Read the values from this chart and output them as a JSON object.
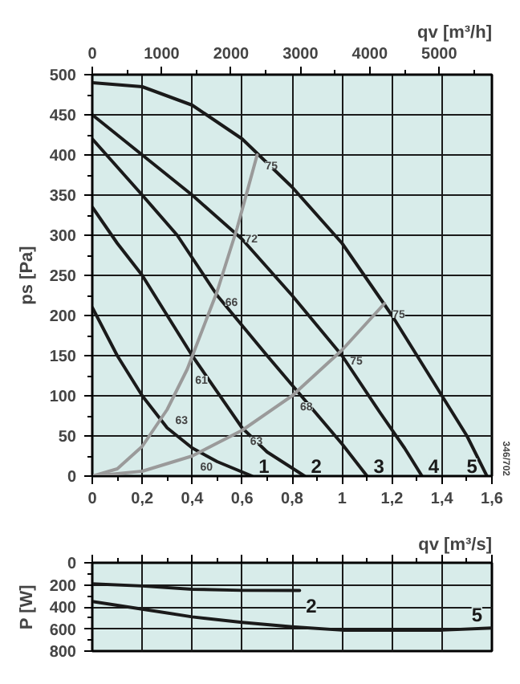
{
  "chart_data": [
    {
      "type": "line",
      "x2label": "qv [m³/h]",
      "ylabel": "ps [Pa]",
      "xlim": [
        0,
        1.6
      ],
      "ylim": [
        0,
        500
      ],
      "xticks": [
        0,
        {
          "value": 0.2,
          "label": "0,2"
        },
        {
          "value": 0.4,
          "label": "0,4"
        },
        {
          "value": 0.6,
          "label": "0,6"
        },
        {
          "value": 0.8,
          "label": "0,8"
        },
        1,
        {
          "value": 1.2,
          "label": "1,2"
        },
        {
          "value": 1.4,
          "label": "1,4"
        },
        {
          "value": 1.6,
          "label": "1,6"
        }
      ],
      "yticks": [
        0,
        50,
        100,
        150,
        200,
        250,
        300,
        350,
        400,
        450,
        500
      ],
      "x2lim": [
        0,
        5760
      ],
      "x2ticks": [
        0,
        1000,
        2000,
        3000,
        4000,
        5000
      ],
      "grid": true,
      "series": [
        {
          "name": "1",
          "color": "#1a1a1a",
          "x": [
            0,
            0.1,
            0.2,
            0.3,
            0.4,
            0.5,
            0.64
          ],
          "values": [
            210,
            150,
            100,
            60,
            35,
            18,
            0
          ]
        },
        {
          "name": "2",
          "color": "#1a1a1a",
          "x": [
            0,
            0.1,
            0.2,
            0.4,
            0.6,
            0.7,
            0.85
          ],
          "values": [
            335,
            290,
            250,
            150,
            60,
            30,
            0
          ]
        },
        {
          "name": "3",
          "color": "#1a1a1a",
          "x": [
            0,
            0.2,
            0.34,
            0.5,
            0.7,
            0.85,
            1.0,
            1.1
          ],
          "values": [
            420,
            350,
            300,
            225,
            150,
            95,
            40,
            0
          ]
        },
        {
          "name": "4",
          "color": "#1a1a1a",
          "x": [
            0,
            0.2,
            0.4,
            0.6,
            0.8,
            1.0,
            1.15,
            1.25,
            1.32
          ],
          "values": [
            450,
            400,
            350,
            295,
            225,
            150,
            80,
            35,
            0
          ]
        },
        {
          "name": "5",
          "color": "#1a1a1a",
          "x": [
            0,
            0.2,
            0.4,
            0.6,
            0.8,
            1.0,
            1.2,
            1.4,
            1.5,
            1.58
          ],
          "values": [
            490,
            485,
            462,
            420,
            360,
            290,
            200,
            100,
            50,
            0
          ]
        },
        {
          "color": "#9a9a9a",
          "x": [
            0,
            0.1,
            0.2,
            0.3,
            0.38,
            0.5,
            0.58,
            0.66
          ],
          "values": [
            0,
            9,
            37,
            83,
            133,
            230,
            309,
            400
          ]
        },
        {
          "color": "#9a9a9a",
          "x": [
            0,
            0.2,
            0.4,
            0.6,
            0.8,
            1.0,
            1.17
          ],
          "values": [
            0,
            6,
            25,
            57,
            100,
            157,
            215
          ]
        }
      ],
      "annotations": [
        {
          "text": "75",
          "x": 0.66,
          "y": 400
        },
        {
          "text": "72",
          "x": 0.58,
          "y": 309
        },
        {
          "text": "66",
          "x": 0.5,
          "y": 230
        },
        {
          "text": "61",
          "x": 0.38,
          "y": 133
        },
        {
          "text": "63",
          "x": 0.3,
          "y": 83
        },
        {
          "text": "75",
          "x": 1.17,
          "y": 215
        },
        {
          "text": "75",
          "x": 1.0,
          "y": 157
        },
        {
          "text": "68",
          "x": 0.8,
          "y": 100
        },
        {
          "text": "63",
          "x": 0.6,
          "y": 57
        },
        {
          "text": "60",
          "x": 0.4,
          "y": 25
        },
        "346/702"
      ]
    },
    {
      "type": "line",
      "xlabel": "qv [m³/s]",
      "ylabel": "P [W]",
      "xlim": [
        0,
        1.6
      ],
      "ylim": [
        800,
        0
      ],
      "xticks": [
        {
          "value": 0,
          "label": null
        },
        {
          "value": 0.2,
          "label": null
        },
        {
          "value": 0.4,
          "label": null
        },
        {
          "value": 0.6,
          "label": null
        },
        {
          "value": 0.8,
          "label": null
        },
        {
          "value": 1,
          "label": null
        },
        {
          "value": 1.2,
          "label": null
        },
        {
          "value": 1.4,
          "label": null
        },
        {
          "value": 1.6,
          "label": null
        }
      ],
      "yticks": [
        0,
        200,
        400,
        600,
        800
      ],
      "tick_labels": "y",
      "grid": true,
      "series": [
        {
          "name": "2",
          "color": "#1a1a1a",
          "x": [
            0,
            0.2,
            0.4,
            0.6,
            0.83
          ],
          "values": [
            190,
            210,
            240,
            250,
            250
          ]
        },
        {
          "name": "5",
          "color": "#1a1a1a",
          "x": [
            0,
            0.2,
            0.4,
            0.6,
            0.8,
            1.0,
            1.2,
            1.4,
            1.6
          ],
          "values": [
            350,
            420,
            490,
            540,
            580,
            610,
            610,
            610,
            590
          ]
        }
      ]
    }
  ]
}
